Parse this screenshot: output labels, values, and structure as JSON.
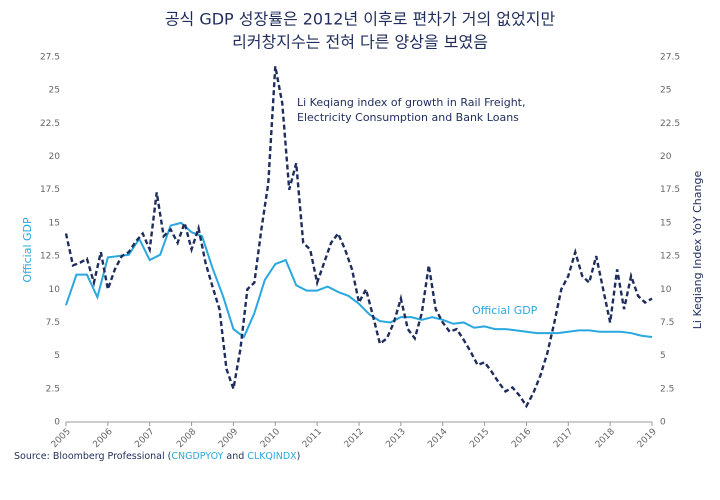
{
  "chart_data": {
    "type": "line",
    "title": "공식 GDP 성장률은 2012년 이후로 편차가 거의 없었지만",
    "subtitle": "리커창지수는 전혀 다른 양상을 보였음",
    "y_label": "Official GDP",
    "y2_label": "Li Keqiang Index YoY Change",
    "annotations": [
      "Li Keqiang index of growth in Rail Freight,",
      "Electricity Consumption and Bank Loans",
      "Official GDP"
    ],
    "source": [
      "Source: Bloomberg Professional (",
      "CNGDPYOY",
      " and ",
      "CLKQINDX",
      ")"
    ],
    "xlim": [
      2005,
      2019
    ],
    "xticks": [
      2005,
      2006,
      2007,
      2008,
      2009,
      2010,
      2011,
      2012,
      2013,
      2014,
      2015,
      2016,
      2017,
      2018,
      2019
    ],
    "ylim": [
      0,
      27.5
    ],
    "yticks": [
      0,
      2.5,
      5,
      7.5,
      10,
      12.5,
      15,
      17.5,
      20,
      22.5,
      25,
      27.5
    ],
    "y2lim": [
      0,
      27.5
    ],
    "y2ticks": [
      0,
      2.5,
      5,
      7.5,
      10,
      12.5,
      15,
      17.5,
      20,
      22.5,
      25,
      27.5
    ],
    "series": [
      {
        "name": "Official GDP",
        "color": "#29a8df",
        "dashed": false,
        "x": [
          2005,
          2005.25,
          2005.5,
          2005.75,
          2006,
          2006.25,
          2006.5,
          2006.75,
          2007,
          2007.25,
          2007.5,
          2007.75,
          2008,
          2008.25,
          2008.5,
          2008.75,
          2009,
          2009.25,
          2009.5,
          2009.75,
          2010,
          2010.25,
          2010.5,
          2010.75,
          2011,
          2011.25,
          2011.5,
          2011.75,
          2012,
          2012.25,
          2012.5,
          2012.75,
          2013,
          2013.25,
          2013.5,
          2013.75,
          2014,
          2014.25,
          2014.5,
          2014.75,
          2015,
          2015.25,
          2015.5,
          2015.75,
          2016,
          2016.25,
          2016.5,
          2016.75,
          2017,
          2017.25,
          2017.5,
          2017.75,
          2018,
          2018.25,
          2018.5,
          2018.75,
          2019
        ],
        "values": [
          8.8,
          11.1,
          11.1,
          9.4,
          12.4,
          12.5,
          12.6,
          13.8,
          12.2,
          12.6,
          14.8,
          15.0,
          14.3,
          14.0,
          11.6,
          9.5,
          7.0,
          6.4,
          8.2,
          10.7,
          11.9,
          12.2,
          10.3,
          9.9,
          9.9,
          10.2,
          9.8,
          9.5,
          8.9,
          8.1,
          7.6,
          7.5,
          7.9,
          7.9,
          7.7,
          7.9,
          7.7,
          7.4,
          7.5,
          7.1,
          7.2,
          7.0,
          7.0,
          6.9,
          6.8,
          6.7,
          6.7,
          6.7,
          6.8,
          6.9,
          6.9,
          6.8,
          6.8,
          6.8,
          6.7,
          6.5,
          6.4
        ]
      },
      {
        "name": "Li Keqiang Index",
        "color": "#1f2d5c",
        "dashed": true,
        "axis": "y2",
        "x": [
          2005,
          2005.167,
          2005.333,
          2005.5,
          2005.667,
          2005.833,
          2006,
          2006.167,
          2006.333,
          2006.5,
          2006.667,
          2006.833,
          2007,
          2007.167,
          2007.333,
          2007.5,
          2007.667,
          2007.833,
          2008,
          2008.167,
          2008.333,
          2008.5,
          2008.667,
          2008.833,
          2009,
          2009.167,
          2009.333,
          2009.5,
          2009.667,
          2009.833,
          2010,
          2010.167,
          2010.333,
          2010.5,
          2010.667,
          2010.833,
          2011,
          2011.167,
          2011.333,
          2011.5,
          2011.667,
          2011.833,
          2012,
          2012.167,
          2012.333,
          2012.5,
          2012.667,
          2012.833,
          2013,
          2013.167,
          2013.333,
          2013.5,
          2013.667,
          2013.833,
          2014,
          2014.167,
          2014.333,
          2014.5,
          2014.667,
          2014.833,
          2015,
          2015.167,
          2015.333,
          2015.5,
          2015.667,
          2015.833,
          2016,
          2016.167,
          2016.333,
          2016.5,
          2016.667,
          2016.833,
          2017,
          2017.167,
          2017.333,
          2017.5,
          2017.667,
          2017.833,
          2018,
          2018.167,
          2018.333,
          2018.5,
          2018.667,
          2018.833,
          2019
        ],
        "values": [
          14.2,
          11.8,
          12.0,
          12.3,
          10.5,
          12.8,
          10.0,
          11.5,
          12.5,
          12.8,
          13.6,
          14.2,
          13.0,
          17.3,
          14.0,
          14.5,
          13.5,
          15.0,
          13.0,
          14.6,
          12.0,
          10.2,
          8.5,
          4.0,
          2.5,
          5.5,
          10.0,
          10.5,
          14.5,
          18.0,
          26.8,
          24.0,
          17.5,
          19.5,
          13.5,
          13.0,
          10.5,
          12.0,
          13.5,
          14.2,
          13.0,
          11.5,
          9.0,
          10.0,
          8.0,
          5.9,
          6.3,
          7.5,
          9.3,
          7.0,
          6.3,
          8.2,
          11.8,
          8.5,
          7.5,
          6.8,
          7.0,
          6.2,
          5.3,
          4.3,
          4.5,
          3.8,
          3.0,
          2.3,
          2.6,
          2.0,
          1.2,
          2.2,
          3.5,
          5.2,
          7.5,
          10.0,
          11.0,
          12.8,
          11.0,
          10.5,
          12.5,
          10.0,
          7.5,
          11.5,
          8.5,
          11.0,
          9.5,
          9.0,
          9.3
        ]
      }
    ]
  }
}
